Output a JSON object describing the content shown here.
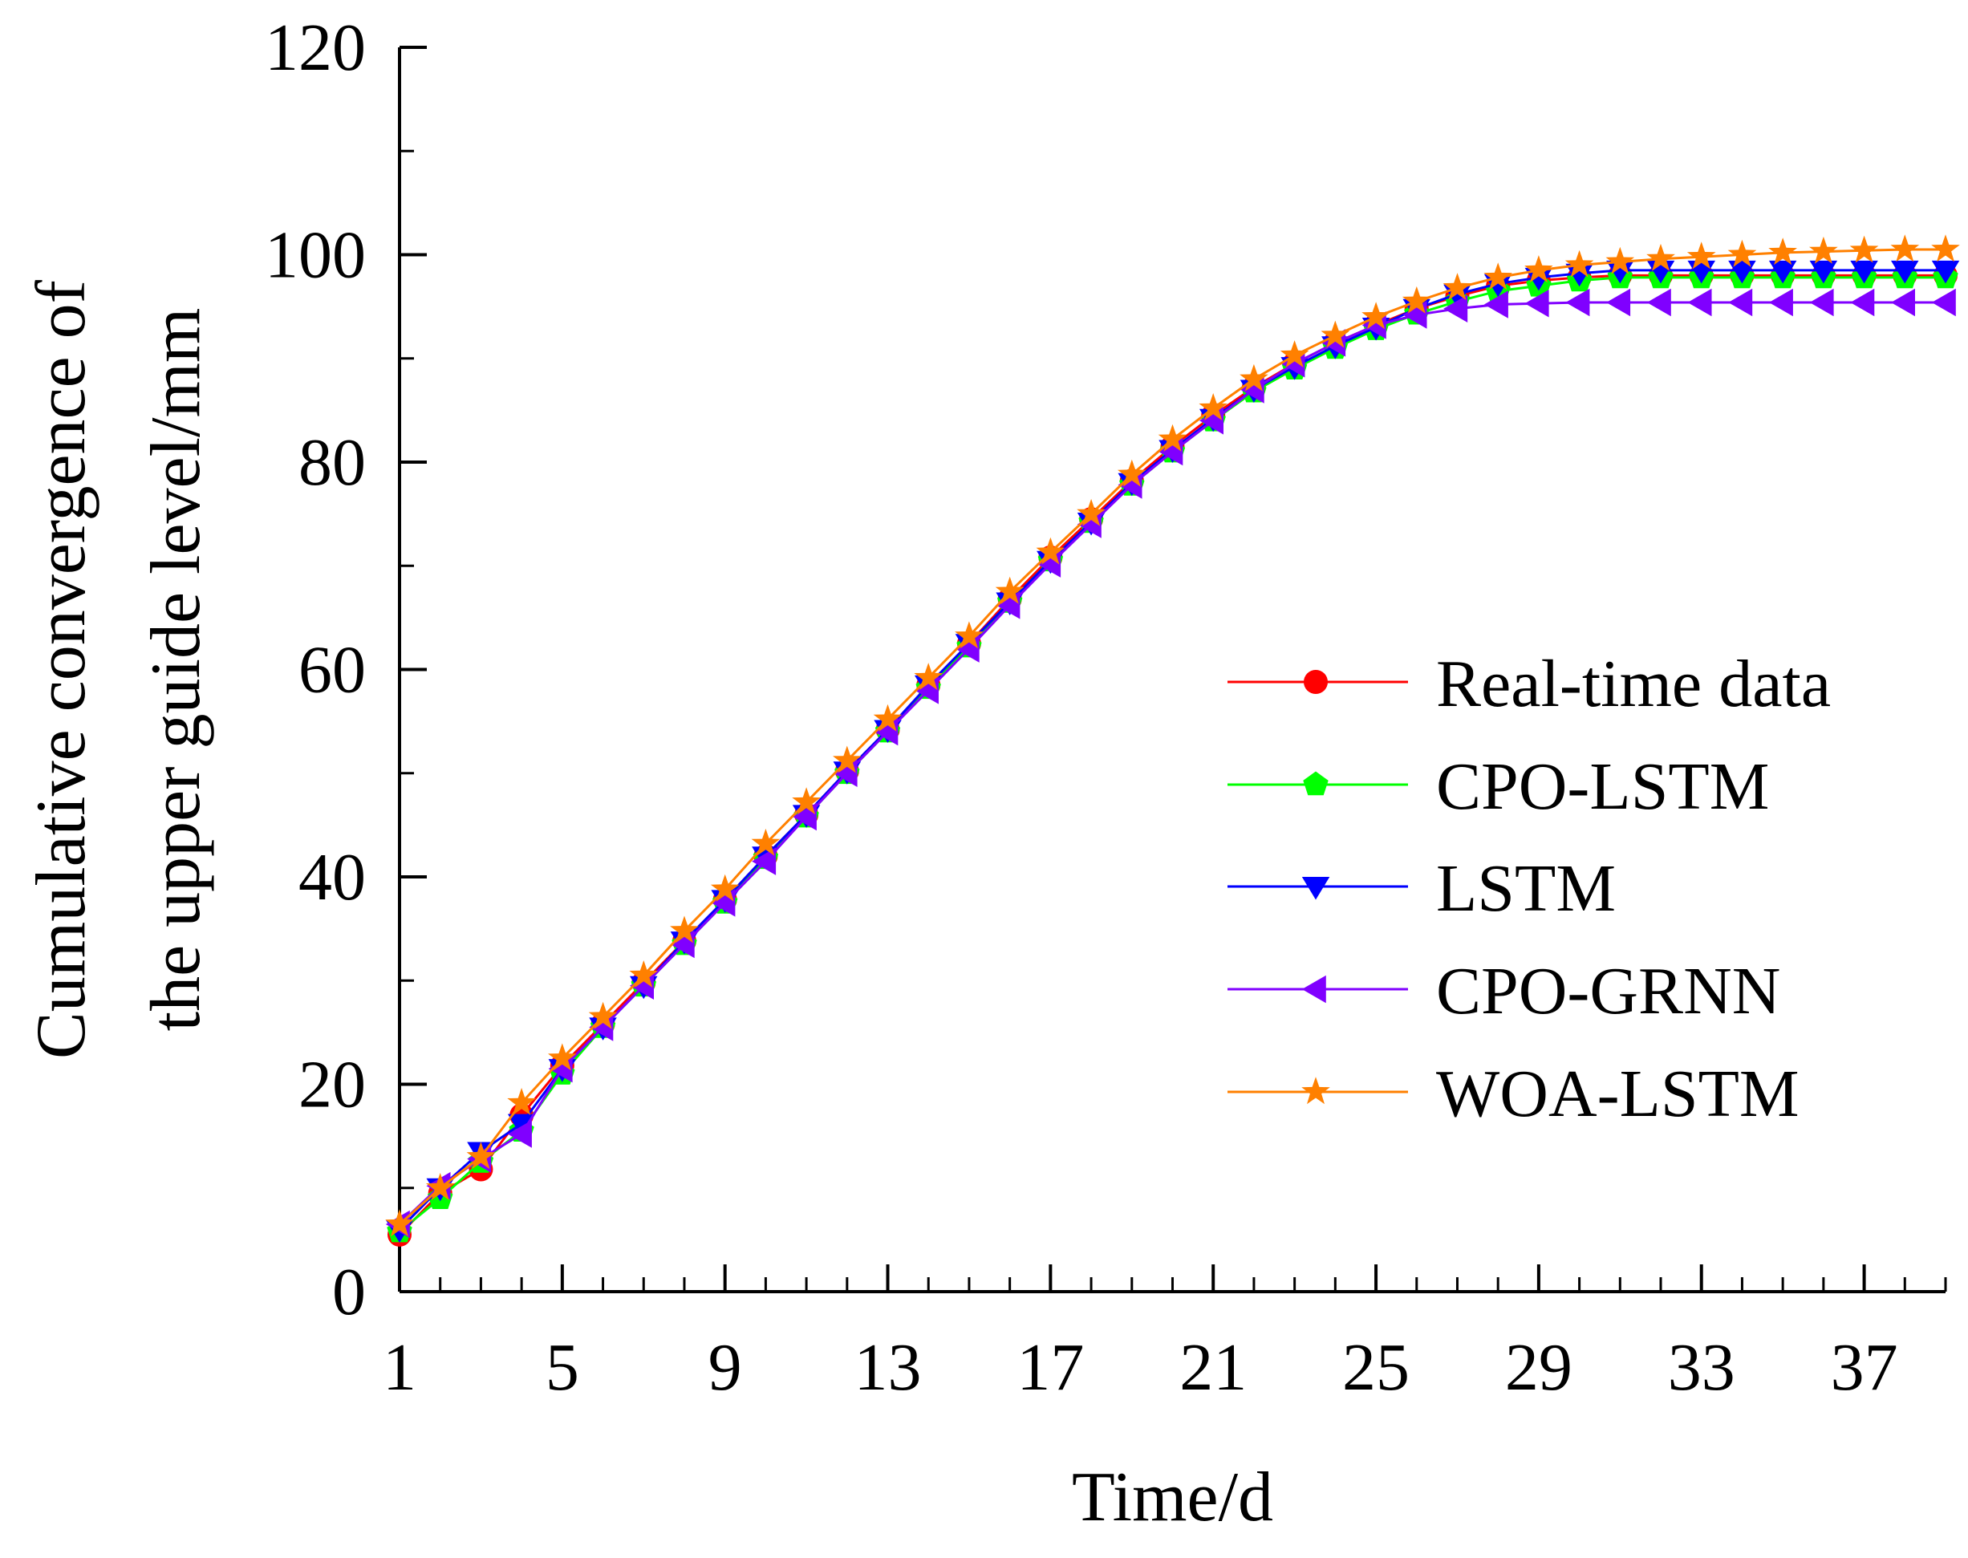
{
  "chart_data": {
    "type": "line",
    "title": "",
    "xlabel": "Time/d",
    "ylabel_lines": [
      "Cumulative convergence of",
      "the upper guide level/mm"
    ],
    "xlim": [
      1,
      39
    ],
    "ylim": [
      0,
      120
    ],
    "x_ticks": [
      1,
      5,
      9,
      13,
      17,
      21,
      25,
      29,
      33,
      37
    ],
    "y_ticks": [
      0,
      20,
      40,
      60,
      80,
      100,
      120
    ],
    "grid": false,
    "legend_position": "center-right",
    "x": [
      1,
      2,
      3,
      4,
      5,
      6,
      7,
      8,
      9,
      10,
      11,
      12,
      13,
      14,
      15,
      16,
      17,
      18,
      19,
      20,
      21,
      22,
      23,
      24,
      25,
      26,
      27,
      28,
      29,
      30,
      31,
      32,
      33,
      34,
      35,
      36,
      37,
      38,
      39
    ],
    "series": [
      {
        "name": "Real-time data",
        "color": "#ff0000",
        "marker": "circle",
        "values": [
          5.5,
          9.5,
          11.8,
          17.0,
          21.8,
          25.8,
          29.8,
          33.8,
          37.8,
          42.0,
          46.0,
          50.2,
          54.2,
          58.5,
          62.5,
          66.8,
          70.8,
          74.5,
          78.2,
          81.5,
          84.5,
          87.2,
          89.5,
          91.5,
          93.2,
          94.8,
          96.0,
          97.0,
          97.5,
          97.8,
          98.0,
          98.0,
          98.0,
          98.0,
          98.0,
          98.0,
          98.0,
          98.0,
          98.0
        ]
      },
      {
        "name": "CPO-LSTM",
        "color": "#00ff00",
        "marker": "pentagon",
        "values": [
          5.8,
          9.0,
          12.5,
          15.5,
          21.0,
          25.5,
          29.5,
          33.5,
          37.5,
          41.8,
          45.8,
          50.0,
          54.0,
          58.2,
          62.2,
          66.5,
          70.5,
          74.2,
          77.8,
          81.0,
          84.0,
          86.8,
          89.0,
          91.0,
          92.8,
          94.3,
          95.5,
          96.5,
          97.0,
          97.5,
          97.8,
          97.8,
          97.8,
          97.8,
          97.8,
          97.8,
          97.8,
          97.8,
          97.8
        ]
      },
      {
        "name": "LSTM",
        "color": "#0000ff",
        "marker": "triangle-down",
        "values": [
          6.0,
          10.0,
          13.5,
          16.2,
          21.5,
          25.5,
          29.5,
          33.8,
          37.8,
          42.0,
          46.0,
          50.2,
          54.2,
          58.5,
          62.5,
          66.5,
          70.5,
          74.2,
          78.0,
          81.2,
          84.2,
          87.0,
          89.2,
          91.2,
          93.0,
          94.8,
          96.2,
          97.2,
          97.8,
          98.2,
          98.5,
          98.5,
          98.5,
          98.5,
          98.5,
          98.5,
          98.5,
          98.5,
          98.5
        ]
      },
      {
        "name": "CPO-GRNN",
        "color": "#8000ff",
        "marker": "triangle-left",
        "values": [
          6.5,
          10.2,
          12.8,
          15.2,
          21.5,
          25.5,
          29.5,
          33.5,
          37.5,
          41.5,
          45.8,
          50.0,
          54.0,
          58.0,
          62.0,
          66.2,
          70.2,
          74.0,
          77.8,
          81.0,
          84.0,
          87.0,
          89.5,
          91.5,
          93.2,
          94.2,
          94.8,
          95.2,
          95.3,
          95.4,
          95.4,
          95.4,
          95.4,
          95.4,
          95.4,
          95.4,
          95.4,
          95.4,
          95.4
        ]
      },
      {
        "name": "WOA-LSTM",
        "color": "#ff8000",
        "marker": "star",
        "values": [
          6.5,
          10.0,
          13.0,
          18.2,
          22.5,
          26.5,
          30.5,
          34.8,
          38.8,
          43.2,
          47.2,
          51.2,
          55.2,
          59.2,
          63.2,
          67.5,
          71.3,
          75.0,
          78.8,
          82.2,
          85.2,
          88.0,
          90.3,
          92.2,
          94.0,
          95.5,
          96.8,
          97.8,
          98.5,
          99.0,
          99.3,
          99.6,
          99.8,
          100.0,
          100.2,
          100.3,
          100.4,
          100.5,
          100.5
        ]
      }
    ]
  }
}
